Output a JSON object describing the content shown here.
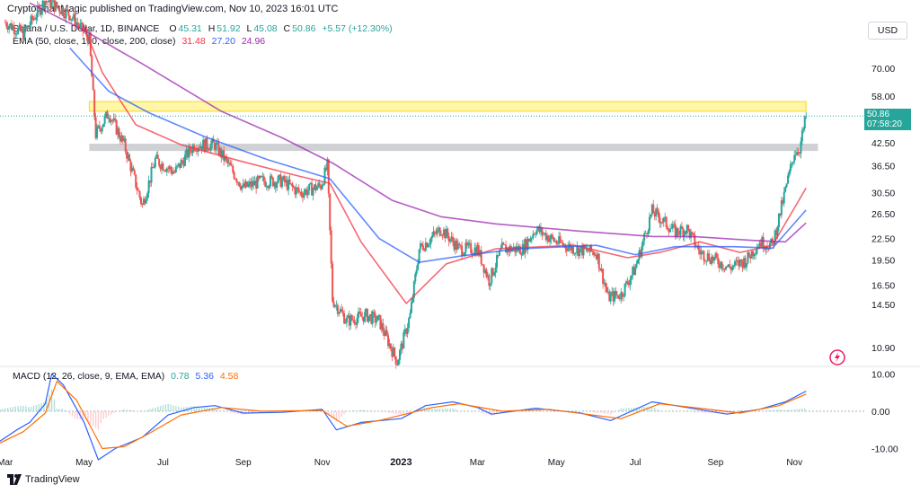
{
  "header": "CryptoChartMagic published on TradingView.com, Nov 10, 2023 16:01 UTC",
  "legend": {
    "symbol": "Solana / U.S. Dollar, 1D, BINANCE",
    "o_label": "O",
    "o_value": "45.31",
    "h_label": "H",
    "h_value": "51.92",
    "l_label": "L",
    "l_value": "45.08",
    "c_label": "C",
    "c_value": "50.86",
    "change": "+5.57 (+12.30%)",
    "ema_label": "EMA (50, close, 100, close, 200, close)",
    "ema50": "31.48",
    "ema100": "27.20",
    "ema200": "24.96",
    "macd_label": "MACD (12, 26, close, 9, EMA, EMA)",
    "macd_hist": "0.78",
    "macd_line": "5.36",
    "macd_signal": "4.58"
  },
  "currency": "USD",
  "price_tag": {
    "price": "50.86",
    "countdown": "07:58:20"
  },
  "footer_brand": "TradingView",
  "colors": {
    "up": "#26a69a",
    "down": "#ef5350",
    "ema50": "#f23645",
    "ema100": "#2962ff",
    "ema200": "#9c27b0",
    "resistance_zone": "#ffeb3b",
    "support_zone": "#9598a1",
    "macd_line": "#2962ff",
    "signal_line": "#ff6d00"
  },
  "chart_data": [
    {
      "type": "candlestick",
      "title": "Solana / U.S. Dollar, 1D, BINANCE",
      "scale": "log",
      "ylim": [
        9.6,
        105
      ],
      "y_ticks": [
        "70.00",
        "58.00",
        "50.86",
        "42.50",
        "36.50",
        "30.50",
        "26.50",
        "22.50",
        "19.50",
        "16.50",
        "14.50",
        "10.90"
      ],
      "x_ticks": [
        "Mar",
        "May",
        "Jul",
        "Sep",
        "Nov",
        "2023",
        "Mar",
        "May",
        "Jul",
        "Sep",
        "Nov"
      ],
      "x_range": [
        "2022-02-25",
        "2023-12-25"
      ],
      "zones": [
        {
          "name": "resistance",
          "from_date": "2022-05-05",
          "to": "2023-11-10",
          "low": 52.5,
          "high": 56.0
        },
        {
          "name": "support",
          "from_date": "2022-05-05",
          "to": "2023-11-15",
          "low": 40.3,
          "high": 42.3
        }
      ],
      "price_points": [
        [
          "2022-03-01",
          95
        ],
        [
          "2022-03-15",
          88
        ],
        [
          "2022-04-01",
          110
        ],
        [
          "2022-04-20",
          100
        ],
        [
          "2022-05-05",
          85
        ],
        [
          "2022-05-10",
          45
        ],
        [
          "2022-05-20",
          52
        ],
        [
          "2022-06-01",
          42
        ],
        [
          "2022-06-15",
          28
        ],
        [
          "2022-06-25",
          38
        ],
        [
          "2022-07-10",
          35
        ],
        [
          "2022-07-25",
          42
        ],
        [
          "2022-08-10",
          42
        ],
        [
          "2022-08-20",
          37
        ],
        [
          "2022-09-01",
          31.5
        ],
        [
          "2022-09-15",
          33
        ],
        [
          "2022-10-01",
          33
        ],
        [
          "2022-10-15",
          30.5
        ],
        [
          "2022-10-31",
          32
        ],
        [
          "2022-11-05",
          36.5
        ],
        [
          "2022-11-09",
          15
        ],
        [
          "2022-11-20",
          13
        ],
        [
          "2022-12-05",
          13.5
        ],
        [
          "2022-12-15",
          13
        ],
        [
          "2022-12-29",
          9.9
        ],
        [
          "2023-01-08",
          13.5
        ],
        [
          "2023-01-15",
          21
        ],
        [
          "2023-02-01",
          24
        ],
        [
          "2023-02-15",
          21
        ],
        [
          "2023-03-01",
          21
        ],
        [
          "2023-03-10",
          17
        ],
        [
          "2023-03-20",
          21
        ],
        [
          "2023-04-05",
          21
        ],
        [
          "2023-04-15",
          24
        ],
        [
          "2023-05-01",
          22
        ],
        [
          "2023-05-15",
          21
        ],
        [
          "2023-06-01",
          20.5
        ],
        [
          "2023-06-10",
          15.2
        ],
        [
          "2023-06-20",
          15.5
        ],
        [
          "2023-07-01",
          18.5
        ],
        [
          "2023-07-14",
          27
        ],
        [
          "2023-08-01",
          23.5
        ],
        [
          "2023-08-10",
          24
        ],
        [
          "2023-08-20",
          20.5
        ],
        [
          "2023-09-01",
          19.5
        ],
        [
          "2023-09-12",
          18.5
        ],
        [
          "2023-09-25",
          19.5
        ],
        [
          "2023-10-05",
          22
        ],
        [
          "2023-10-15",
          21.5
        ],
        [
          "2023-10-25",
          31
        ],
        [
          "2023-11-01",
          40
        ],
        [
          "2023-11-05",
          41
        ],
        [
          "2023-11-10",
          50.86
        ]
      ],
      "series": [
        {
          "name": "EMA 50",
          "values": [
            [
              "2022-05-01",
              92
            ],
            [
              "2022-05-15",
              68
            ],
            [
              "2022-06-10",
              48
            ],
            [
              "2022-07-15",
              42
            ],
            [
              "2022-09-01",
              37.5
            ],
            [
              "2022-10-15",
              34
            ],
            [
              "2022-11-07",
              32.5
            ],
            [
              "2022-12-01",
              22
            ],
            [
              "2023-01-05",
              14.6
            ],
            [
              "2023-02-05",
              19
            ],
            [
              "2023-03-15",
              21
            ],
            [
              "2023-05-15",
              21.5
            ],
            [
              "2023-06-25",
              19.8
            ],
            [
              "2023-07-20",
              20.5
            ],
            [
              "2023-08-20",
              22
            ],
            [
              "2023-09-20",
              20.5
            ],
            [
              "2023-10-15",
              21.5
            ],
            [
              "2023-11-10",
              31.48
            ]
          ]
        },
        {
          "name": "EMA 100",
          "values": [
            [
              "2022-04-20",
              80
            ],
            [
              "2022-05-20",
              60
            ],
            [
              "2022-06-20",
              52
            ],
            [
              "2022-08-01",
              44.5
            ],
            [
              "2022-09-20",
              38
            ],
            [
              "2022-11-07",
              33.5
            ],
            [
              "2022-12-15",
              22.5
            ],
            [
              "2023-01-15",
              19.2
            ],
            [
              "2023-02-15",
              20
            ],
            [
              "2023-04-01",
              21
            ],
            [
              "2023-06-01",
              21.5
            ],
            [
              "2023-07-01",
              20.2
            ],
            [
              "2023-08-01",
              21.3
            ],
            [
              "2023-09-15",
              21.3
            ],
            [
              "2023-10-15",
              21.1
            ],
            [
              "2023-11-10",
              27.2
            ]
          ]
        },
        {
          "name": "EMA 200",
          "values": [
            [
              "2022-03-20",
              108
            ],
            [
              "2022-05-01",
              90
            ],
            [
              "2022-06-15",
              72
            ],
            [
              "2022-08-15",
              52.5
            ],
            [
              "2022-10-01",
              44
            ],
            [
              "2022-11-10",
              37
            ],
            [
              "2022-12-25",
              29
            ],
            [
              "2023-02-01",
              26
            ],
            [
              "2023-03-15",
              24.8
            ],
            [
              "2023-05-15",
              23.7
            ],
            [
              "2023-07-15",
              22.8
            ],
            [
              "2023-08-15",
              22.8
            ],
            [
              "2023-10-01",
              22.2
            ],
            [
              "2023-10-25",
              22
            ],
            [
              "2023-11-10",
              24.96
            ]
          ]
        }
      ]
    },
    {
      "type": "line",
      "title": "MACD (12, 26, close, 9, EMA, EMA)",
      "ylim": [
        -13,
        12
      ],
      "y_ticks": [
        "10.00",
        "0.00",
        "-10.00"
      ],
      "series": [
        {
          "name": "MACD",
          "values": [
            [
              "2022-02-25",
              -8
            ],
            [
              "2022-03-10",
              -5
            ],
            [
              "2022-03-20",
              -3
            ],
            [
              "2022-04-01",
              2
            ],
            [
              "2022-04-06",
              10
            ],
            [
              "2022-04-15",
              7
            ],
            [
              "2022-05-01",
              -3
            ],
            [
              "2022-05-12",
              -13
            ],
            [
              "2022-05-25",
              -10
            ],
            [
              "2022-06-15",
              -7
            ],
            [
              "2022-07-05",
              -1
            ],
            [
              "2022-07-25",
              1
            ],
            [
              "2022-08-10",
              1.5
            ],
            [
              "2022-09-01",
              -0.5
            ],
            [
              "2022-10-01",
              -0.3
            ],
            [
              "2022-11-01",
              0.5
            ],
            [
              "2022-11-12",
              -5
            ],
            [
              "2022-12-01",
              -3
            ],
            [
              "2023-01-01",
              -2
            ],
            [
              "2023-01-20",
              1.5
            ],
            [
              "2023-02-10",
              2.5
            ],
            [
              "2023-03-01",
              1
            ],
            [
              "2023-03-12",
              -0.8
            ],
            [
              "2023-04-15",
              0.8
            ],
            [
              "2023-05-20",
              -0.5
            ],
            [
              "2023-06-12",
              -2.5
            ],
            [
              "2023-07-14",
              2.5
            ],
            [
              "2023-08-10",
              1
            ],
            [
              "2023-09-10",
              -0.8
            ],
            [
              "2023-10-05",
              0.5
            ],
            [
              "2023-10-25",
              2.5
            ],
            [
              "2023-11-10",
              5.36
            ]
          ]
        },
        {
          "name": "Signal",
          "values": [
            [
              "2022-02-25",
              -8.5
            ],
            [
              "2022-03-15",
              -5.5
            ],
            [
              "2022-04-01",
              -0.5
            ],
            [
              "2022-04-10",
              8
            ],
            [
              "2022-04-25",
              3
            ],
            [
              "2022-05-15",
              -10
            ],
            [
              "2022-06-01",
              -9.5
            ],
            [
              "2022-06-20",
              -6
            ],
            [
              "2022-07-15",
              -1
            ],
            [
              "2022-08-15",
              1
            ],
            [
              "2022-09-15",
              0
            ],
            [
              "2022-11-01",
              0.2
            ],
            [
              "2022-11-20",
              -4
            ],
            [
              "2022-12-15",
              -2.5
            ],
            [
              "2023-01-25",
              1
            ],
            [
              "2023-02-15",
              2
            ],
            [
              "2023-03-20",
              0
            ],
            [
              "2023-04-25",
              0.5
            ],
            [
              "2023-06-20",
              -2
            ],
            [
              "2023-07-20",
              2
            ],
            [
              "2023-08-20",
              0.8
            ],
            [
              "2023-09-20",
              -0.5
            ],
            [
              "2023-10-20",
              1.5
            ],
            [
              "2023-11-10",
              4.58
            ]
          ]
        }
      ]
    }
  ]
}
